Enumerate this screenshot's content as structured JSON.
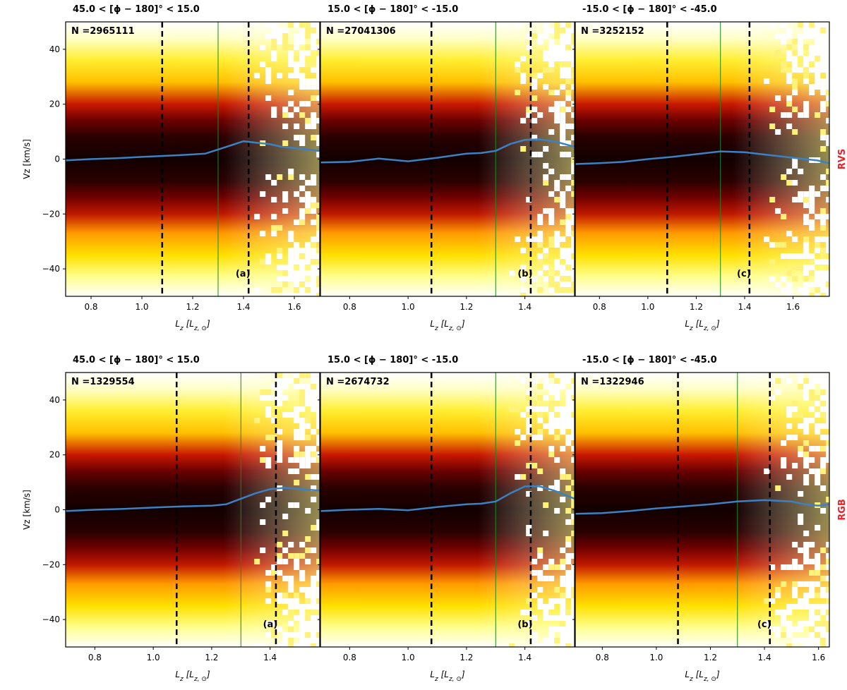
{
  "chart_data": [
    {
      "type": "heatmap",
      "row": "RVS",
      "panels": [
        {
          "title": "45.0 < [ϕ − 180]° < 15.0",
          "n_label": "N =2965111",
          "panel_label": "(a)",
          "xlim": [
            0.7,
            1.7
          ],
          "ylim": [
            -50,
            50
          ],
          "xticks": [
            0.8,
            1.0,
            1.2,
            1.4,
            1.6
          ],
          "yticks": [
            40,
            20,
            0,
            -20,
            -40
          ],
          "xlabel": "L_z [L_{z,⊙}]",
          "ylabel": "Vz [km/s]",
          "dashed_lines_x": [
            1.08,
            1.42
          ],
          "solid_line_x": 1.3,
          "mean_vz_curve": {
            "x": [
              0.7,
              0.8,
              0.9,
              1.0,
              1.1,
              1.2,
              1.25,
              1.3,
              1.35,
              1.4,
              1.45,
              1.5,
              1.55,
              1.6,
              1.65,
              1.7
            ],
            "y": [
              -0.5,
              0.0,
              0.3,
              0.8,
              1.2,
              1.7,
              2.0,
              3.5,
              5.0,
              6.5,
              6.0,
              5.5,
              4.5,
              4.0,
              3.5,
              3.0
            ]
          },
          "data_extent_x": 1.7
        },
        {
          "title": "15.0 < [ϕ − 180]° < -15.0",
          "n_label": "N =27041306",
          "panel_label": "(b)",
          "xlim": [
            0.7,
            1.57
          ],
          "ylim": [
            -50,
            50
          ],
          "xticks": [
            0.8,
            1.0,
            1.2,
            1.4
          ],
          "yticks": [
            40,
            20,
            0,
            -20,
            -40
          ],
          "xlabel": "L_z [L_{z,⊙}]",
          "ylabel": "",
          "dashed_lines_x": [
            1.08,
            1.42
          ],
          "solid_line_x": 1.3,
          "mean_vz_curve": {
            "x": [
              0.7,
              0.8,
              0.9,
              1.0,
              1.1,
              1.2,
              1.25,
              1.3,
              1.35,
              1.4,
              1.45,
              1.5,
              1.57
            ],
            "y": [
              -1.2,
              -1.0,
              0.2,
              -0.8,
              0.5,
              2.0,
              2.2,
              3.0,
              5.5,
              7.0,
              7.2,
              6.5,
              4.5
            ]
          },
          "data_extent_x": 1.57
        },
        {
          "title": "-15.0 < [ϕ − 180]° < -45.0",
          "n_label": "N =3252152",
          "panel_label": "(c)",
          "xlim": [
            0.7,
            1.75
          ],
          "ylim": [
            -50,
            50
          ],
          "xticks": [
            0.8,
            1.0,
            1.2,
            1.4,
            1.6
          ],
          "yticks": [
            40,
            20,
            0,
            -20,
            -40
          ],
          "xlabel": "L_z [L_{z,⊙}]",
          "ylabel": "",
          "dashed_lines_x": [
            1.08,
            1.42
          ],
          "solid_line_x": 1.3,
          "mean_vz_curve": {
            "x": [
              0.7,
              0.8,
              0.9,
              1.0,
              1.1,
              1.2,
              1.3,
              1.4,
              1.5,
              1.6,
              1.7,
              1.75
            ],
            "y": [
              -1.8,
              -1.5,
              -1.0,
              0.0,
              0.8,
              1.8,
              2.8,
              2.5,
              1.5,
              0.5,
              -0.5,
              -1.5
            ]
          },
          "data_extent_x": 1.75
        }
      ],
      "label_color": "#e8232a"
    },
    {
      "type": "heatmap",
      "row": "RGB",
      "panels": [
        {
          "title": "45.0 < [ϕ − 180]° < 15.0",
          "n_label": "N =1329554",
          "panel_label": "(a)",
          "xlim": [
            0.7,
            1.57
          ],
          "ylim": [
            -50,
            50
          ],
          "xticks": [
            0.8,
            1.0,
            1.2,
            1.4
          ],
          "yticks": [
            40,
            20,
            0,
            -20,
            -40
          ],
          "xlabel": "L_z [L_{z,⊙}]",
          "ylabel": "Vz [km/s]",
          "dashed_lines_x": [
            1.08,
            1.42
          ],
          "solid_line_x": 1.3,
          "mean_vz_curve": {
            "x": [
              0.7,
              0.8,
              0.9,
              1.0,
              1.1,
              1.2,
              1.25,
              1.3,
              1.35,
              1.4,
              1.45,
              1.5,
              1.57
            ],
            "y": [
              -0.5,
              0.0,
              0.3,
              0.8,
              1.2,
              1.5,
              2.0,
              4.0,
              6.0,
              7.5,
              8.0,
              7.5,
              7.0
            ]
          },
          "data_extent_x": 1.57
        },
        {
          "title": "15.0 < [ϕ − 180]° < -15.0",
          "n_label": "N =2674732",
          "panel_label": "(b)",
          "xlim": [
            0.7,
            1.57
          ],
          "ylim": [
            -50,
            50
          ],
          "xticks": [
            0.8,
            1.0,
            1.2,
            1.4
          ],
          "yticks": [
            40,
            20,
            0,
            -20,
            -40
          ],
          "xlabel": "L_z [L_{z,⊙}]",
          "ylabel": "",
          "dashed_lines_x": [
            1.08,
            1.42
          ],
          "solid_line_x": 1.3,
          "mean_vz_curve": {
            "x": [
              0.7,
              0.8,
              0.9,
              1.0,
              1.1,
              1.2,
              1.25,
              1.3,
              1.35,
              1.4,
              1.45,
              1.5,
              1.57
            ],
            "y": [
              -0.5,
              0.0,
              0.3,
              -0.2,
              1.0,
              2.0,
              2.2,
              3.0,
              6.0,
              8.5,
              8.5,
              7.0,
              4.0
            ]
          },
          "data_extent_x": 1.57
        },
        {
          "title": "-15.0 < [ϕ − 180]° < -45.0",
          "n_label": "N =1322946",
          "panel_label": "(c)",
          "xlim": [
            0.7,
            1.64
          ],
          "ylim": [
            -50,
            50
          ],
          "xticks": [
            0.8,
            1.0,
            1.2,
            1.4,
            1.6
          ],
          "yticks": [
            40,
            20,
            0,
            -20,
            -40
          ],
          "xlabel": "L_z [L_{z,⊙}]",
          "ylabel": "",
          "dashed_lines_x": [
            1.08,
            1.42
          ],
          "solid_line_x": 1.3,
          "mean_vz_curve": {
            "x": [
              0.7,
              0.8,
              0.9,
              1.0,
              1.1,
              1.2,
              1.3,
              1.4,
              1.5,
              1.55,
              1.6,
              1.64
            ],
            "y": [
              -1.5,
              -1.2,
              -0.5,
              0.5,
              1.2,
              2.0,
              3.0,
              3.5,
              3.0,
              2.0,
              1.5,
              2.0
            ]
          },
          "data_extent_x": 1.64
        }
      ],
      "label_color": "#e8232a"
    }
  ],
  "colors": {
    "curve": "#3b82c4",
    "solid_line": "#1a8a1a",
    "colormap": [
      "#000000",
      "#5a0000",
      "#b01a00",
      "#e85d00",
      "#ffb000",
      "#ffe000",
      "#ffff80",
      "#ffffff"
    ]
  }
}
